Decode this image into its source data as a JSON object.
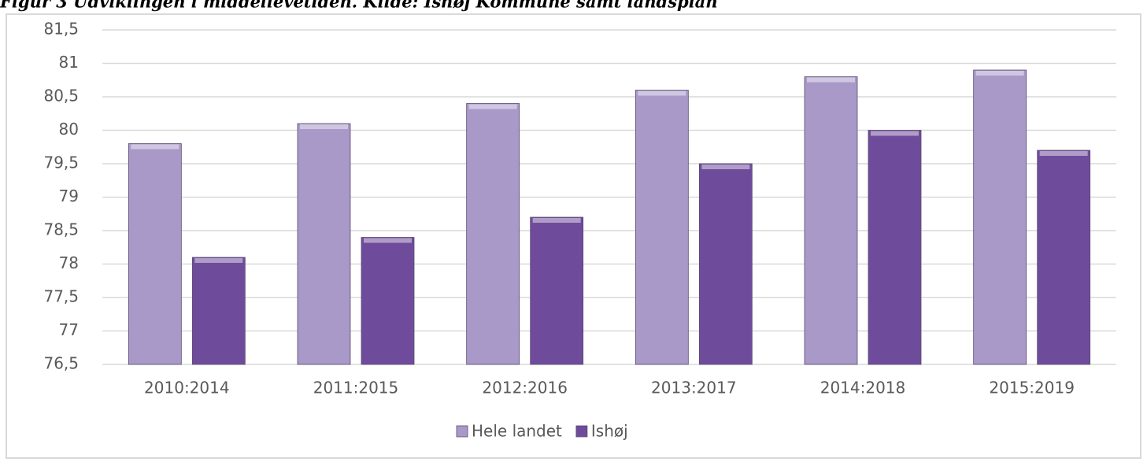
{
  "chart_data": {
    "type": "bar",
    "title": "Figur 3 Udviklingen i middellevetiden. Kilde: Ishøj Kommune samt landsplan",
    "categories": [
      "2010:2014",
      "2011:2015",
      "2012:2016",
      "2013:2017",
      "2014:2018",
      "2015:2019"
    ],
    "series": [
      {
        "name": "Hele landet",
        "color": "#a899c9",
        "values": [
          79.8,
          80.1,
          80.4,
          80.6,
          80.8,
          80.9
        ]
      },
      {
        "name": "Ishøj",
        "color": "#6f4c9b",
        "values": [
          78.1,
          78.4,
          78.7,
          79.5,
          80.0,
          79.7
        ]
      }
    ],
    "ylim": [
      76.5,
      81.5
    ],
    "yticks": [
      {
        "value": 76.5,
        "label": "76,5"
      },
      77,
      {
        "value": 77.5,
        "label": "77,5"
      },
      78,
      {
        "value": 78.5,
        "label": "78,5"
      },
      79,
      {
        "value": 79.5,
        "label": "79,5"
      },
      80,
      {
        "value": 80.5,
        "label": "80,5"
      },
      81,
      {
        "value": 81.5,
        "label": "81,5"
      }
    ],
    "grid": true,
    "legend": "bottom"
  }
}
